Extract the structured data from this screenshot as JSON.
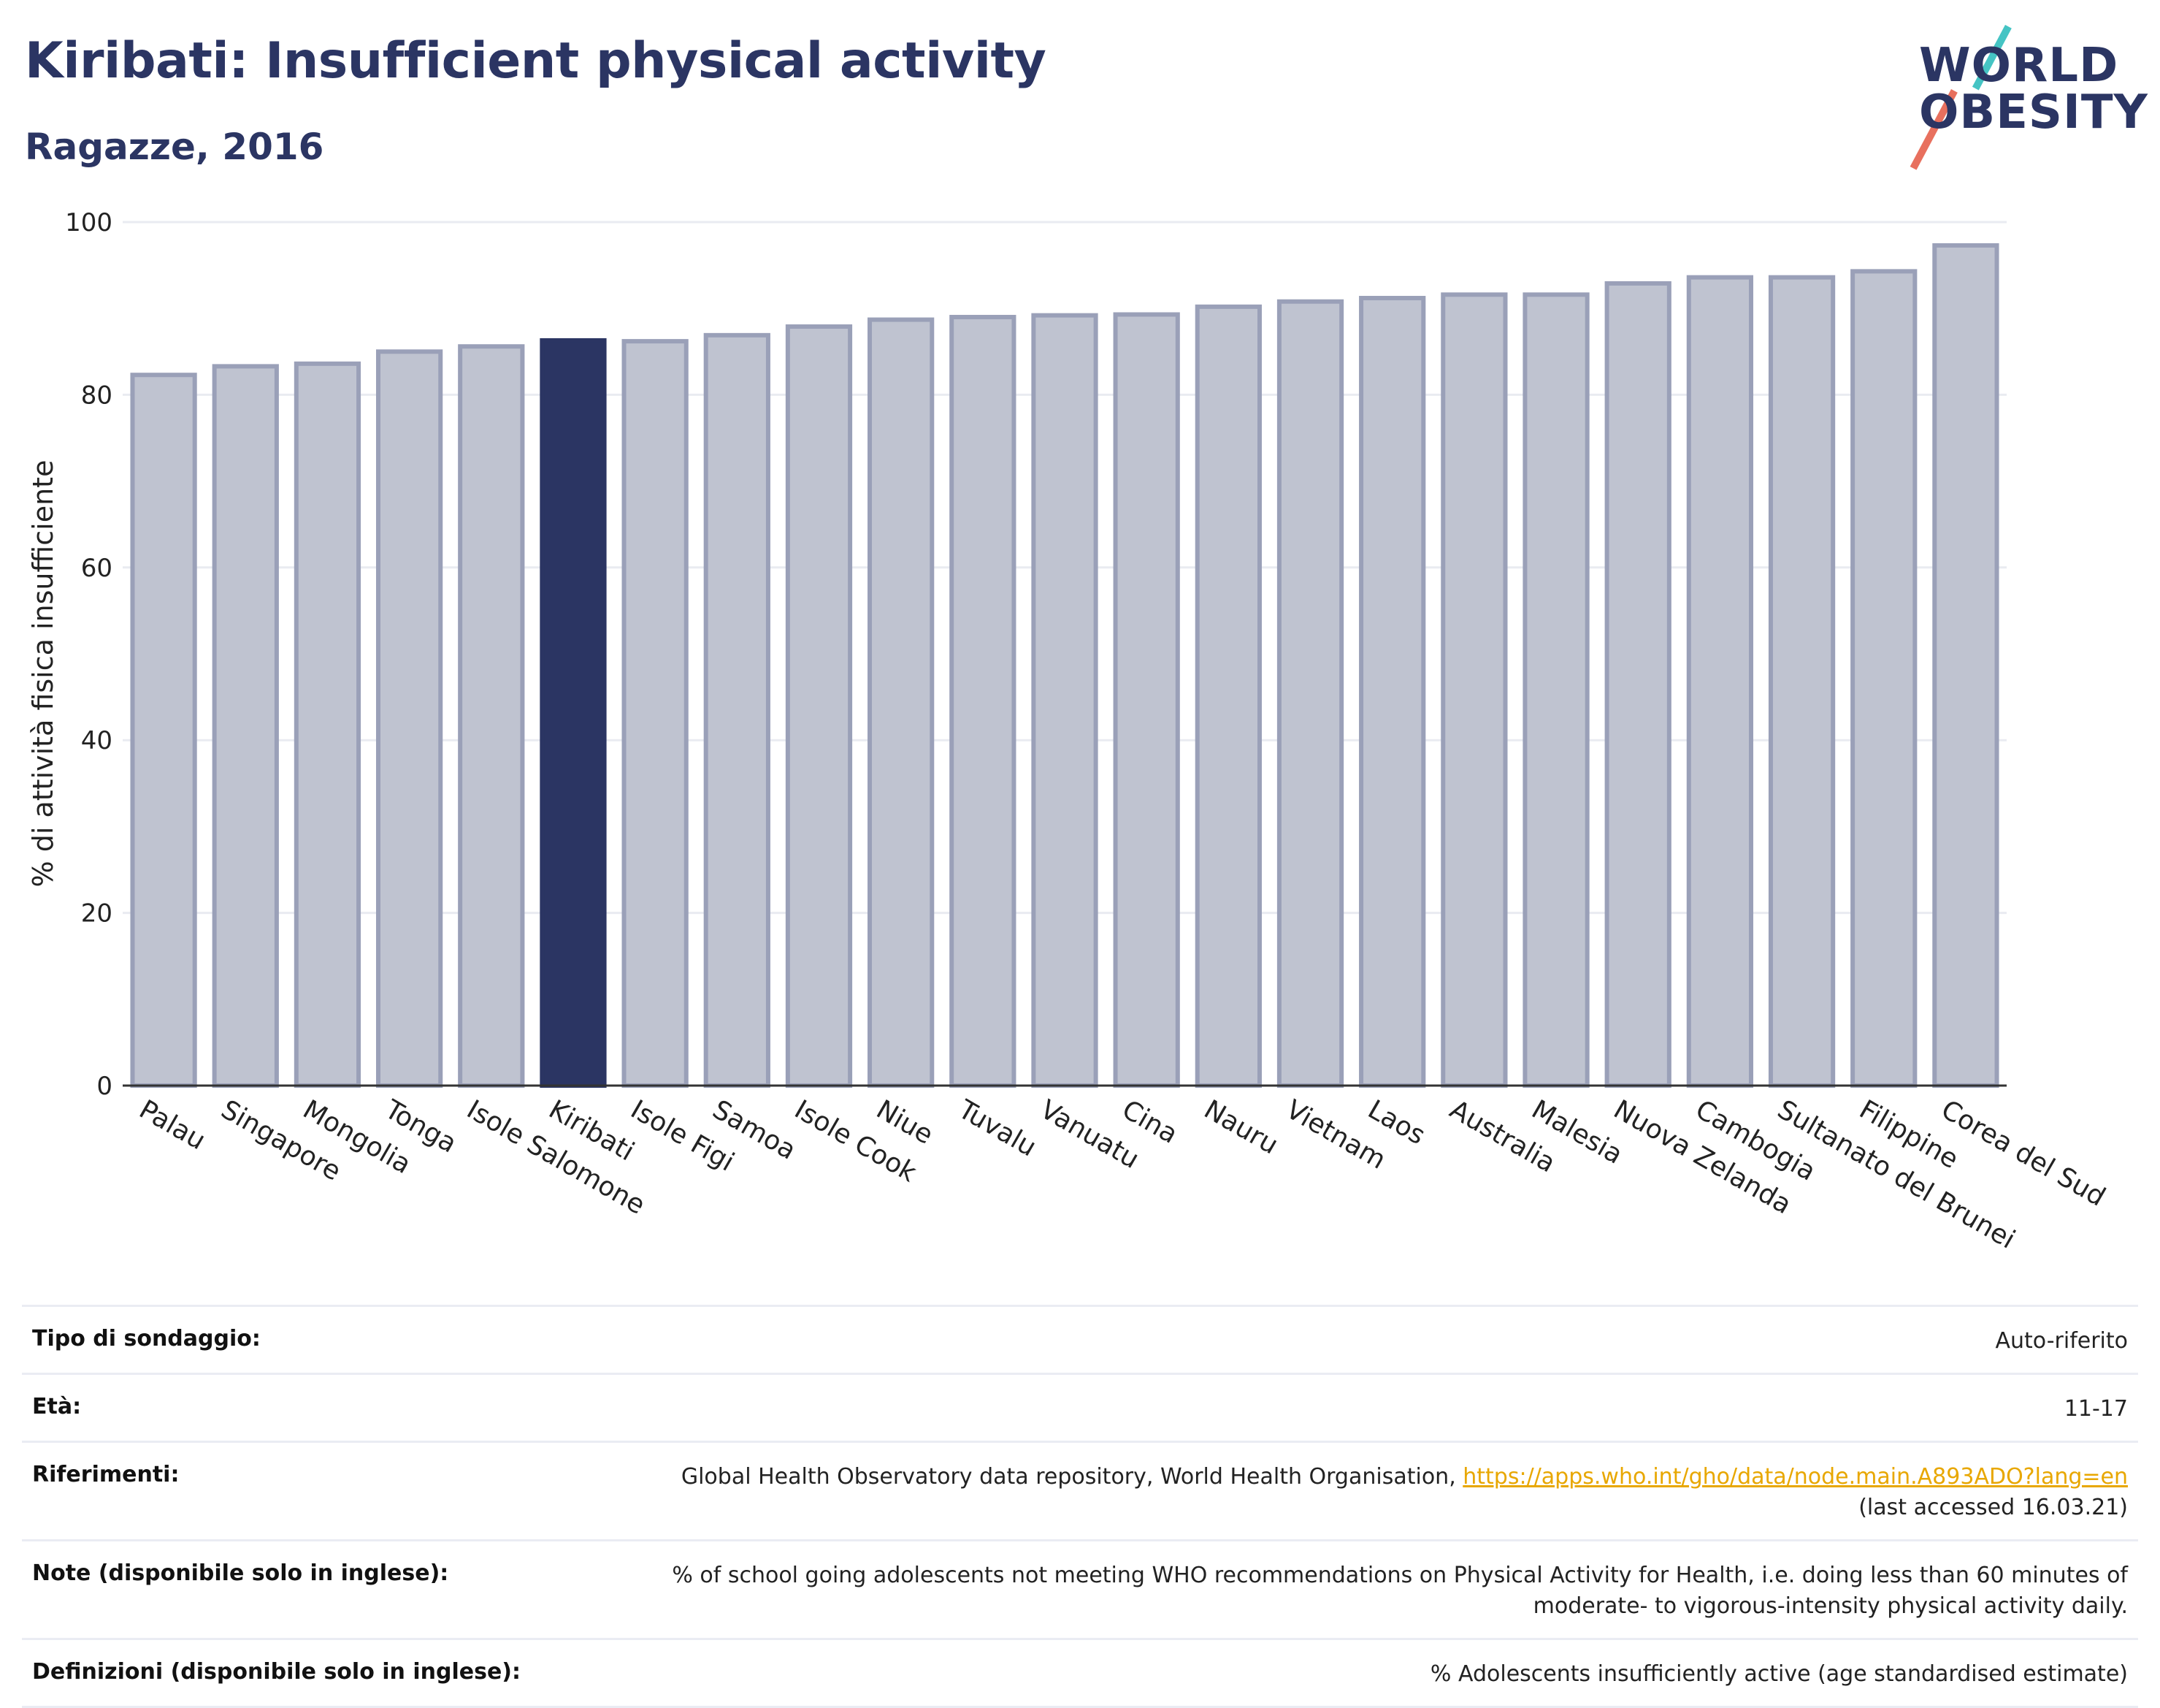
{
  "header": {
    "title": "Kiribati: Insufficient physical activity",
    "subtitle": "Ragazze, 2016"
  },
  "logo": {
    "line1": "WORLD",
    "line2": "OBESITY"
  },
  "colors": {
    "highlight": "#2b3563",
    "bar_fill": "#bfc3d0",
    "bar_stroke": "#9aa0b8",
    "grid": "#e9ebf1"
  },
  "chart_data": {
    "type": "bar",
    "title": "Kiribati: Insufficient physical activity",
    "subtitle": "Ragazze, 2016",
    "xlabel": "",
    "ylabel": "% di attività fisica insufficiente",
    "ylim": [
      0,
      100
    ],
    "yticks": [
      0,
      20,
      40,
      60,
      80,
      100
    ],
    "grid": true,
    "highlight": "Kiribati",
    "categories": [
      "Palau",
      "Singapore",
      "Mongolia",
      "Tonga",
      "Isole Salomone",
      "Kiribati",
      "Isole Figi",
      "Samoa",
      "Isole Cook",
      "Niue",
      "Tuvalu",
      "Vanuatu",
      "Cina",
      "Nauru",
      "Vietnam",
      "Laos",
      "Australia",
      "Malesia",
      "Nuova Zelanda",
      "Cambogia",
      "Sultanato del Brunei",
      "Filippine",
      "Corea del Sud"
    ],
    "values": [
      82.3,
      83.3,
      83.6,
      85.0,
      85.6,
      86.3,
      86.2,
      86.9,
      87.9,
      88.7,
      89.0,
      89.2,
      89.3,
      90.2,
      90.8,
      91.2,
      91.6,
      91.6,
      92.9,
      93.6,
      93.6,
      94.3,
      97.3
    ]
  },
  "info": {
    "survey_label": "Tipo di sondaggio:",
    "survey_value": "Auto-riferito",
    "age_label": "Età:",
    "age_value": "11-17",
    "refs_label": "Riferimenti:",
    "refs_text": "Global Health Observatory data repository, World Health Organisation, ",
    "refs_link": "https://apps.who.int/gho/data/node.main.A893ADO?lang=en",
    "refs_accessed": "(last accessed 16.03.21)",
    "notes_label": "Note (disponibile solo in inglese):",
    "notes_line1": "% of school going adolescents not meeting WHO recommendations on Physical Activity for Health, i.e. doing less than 60 minutes of",
    "notes_line2": "moderate- to vigorous-intensity physical activity daily.",
    "defs_label": "Definizioni (disponibile solo in inglese):",
    "defs_value": "% Adolescents insufficiently active (age standardised estimate)"
  }
}
